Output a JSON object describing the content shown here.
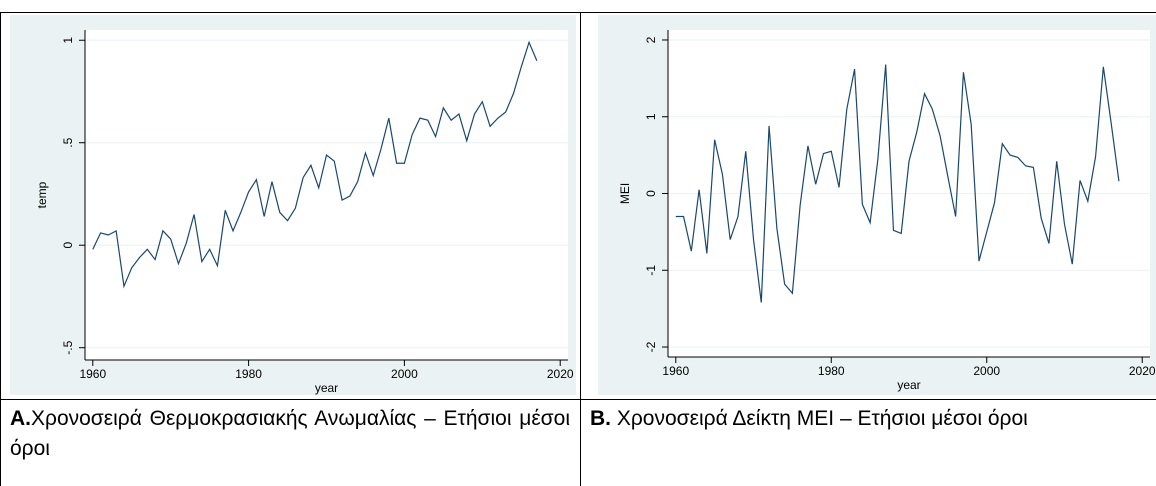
{
  "chart_data": [
    {
      "type": "line",
      "ylabel": "temp",
      "xlabel": "year",
      "x": [
        1960,
        1961,
        1962,
        1963,
        1964,
        1965,
        1966,
        1967,
        1968,
        1969,
        1970,
        1971,
        1972,
        1973,
        1974,
        1975,
        1976,
        1977,
        1978,
        1979,
        1980,
        1981,
        1982,
        1983,
        1984,
        1985,
        1986,
        1987,
        1988,
        1989,
        1990,
        1991,
        1992,
        1993,
        1994,
        1995,
        1996,
        1997,
        1998,
        1999,
        2000,
        2001,
        2002,
        2003,
        2004,
        2005,
        2006,
        2007,
        2008,
        2009,
        2010,
        2011,
        2012,
        2013,
        2014,
        2015,
        2016,
        2017
      ],
      "values": [
        -0.02,
        0.06,
        0.05,
        0.07,
        -0.2,
        -0.11,
        -0.06,
        -0.02,
        -0.07,
        0.07,
        0.03,
        -0.09,
        0.01,
        0.15,
        -0.08,
        -0.02,
        -0.1,
        0.17,
        0.07,
        0.16,
        0.26,
        0.32,
        0.14,
        0.31,
        0.16,
        0.12,
        0.18,
        0.33,
        0.39,
        0.28,
        0.44,
        0.41,
        0.22,
        0.24,
        0.31,
        0.45,
        0.34,
        0.47,
        0.62,
        0.4,
        0.4,
        0.54,
        0.62,
        0.61,
        0.53,
        0.67,
        0.61,
        0.64,
        0.51,
        0.64,
        0.7,
        0.58,
        0.62,
        0.65,
        0.74,
        0.87,
        0.99,
        0.9
      ],
      "color": "#1a476f",
      "xlim": [
        1959,
        2021
      ],
      "xticks": [
        1960,
        1980,
        2000,
        2020
      ],
      "ylim": [
        -0.56,
        1.05
      ],
      "yticks": [
        {
          "value": -0.5,
          "label": "-.5"
        },
        0,
        {
          "value": 0.5,
          "label": ".5"
        },
        1
      ],
      "grid": true
    },
    {
      "type": "line",
      "ylabel": "MEI",
      "xlabel": "year",
      "x": [
        1960,
        1961,
        1962,
        1963,
        1964,
        1965,
        1966,
        1967,
        1968,
        1969,
        1970,
        1971,
        1972,
        1973,
        1974,
        1975,
        1976,
        1977,
        1978,
        1979,
        1980,
        1981,
        1982,
        1983,
        1984,
        1985,
        1986,
        1987,
        1988,
        1989,
        1990,
        1991,
        1992,
        1993,
        1994,
        1995,
        1996,
        1997,
        1998,
        1999,
        2000,
        2001,
        2002,
        2003,
        2004,
        2005,
        2006,
        2007,
        2008,
        2009,
        2010,
        2011,
        2012,
        2013,
        2014,
        2015,
        2016,
        2017
      ],
      "values": [
        -0.3,
        -0.3,
        -0.75,
        0.05,
        -0.78,
        0.7,
        0.25,
        -0.6,
        -0.3,
        0.55,
        -0.6,
        -1.42,
        0.88,
        -0.45,
        -1.18,
        -1.3,
        -0.15,
        0.62,
        0.12,
        0.52,
        0.55,
        0.08,
        1.1,
        1.62,
        -0.14,
        -0.38,
        0.45,
        1.68,
        -0.48,
        -0.52,
        0.42,
        0.8,
        1.3,
        1.1,
        0.75,
        0.22,
        -0.3,
        1.58,
        0.9,
        -0.88,
        -0.5,
        -0.12,
        0.65,
        0.5,
        0.47,
        0.36,
        0.34,
        -0.32,
        -0.65,
        0.42,
        -0.4,
        -0.92,
        0.17,
        -0.1,
        0.48,
        1.65,
        0.92,
        0.16
      ],
      "color": "#1a476f",
      "xlim": [
        1959,
        2021
      ],
      "xticks": [
        1960,
        1980,
        2000,
        2020
      ],
      "ylim": [
        -2.13,
        2.13
      ],
      "yticks": [
        -2,
        -1,
        0,
        1,
        2
      ],
      "grid": true
    }
  ],
  "captions": [
    {
      "label": "A.",
      "text": "Χρονοσειρά Θερμοκρασιακής Ανωμαλίας – Ετήσιοι μέσοι όροι"
    },
    {
      "label": "B.",
      "text": "Χρονοσειρά Δείκτη MEI – Ετήσιοι μέσοι όροι"
    }
  ]
}
